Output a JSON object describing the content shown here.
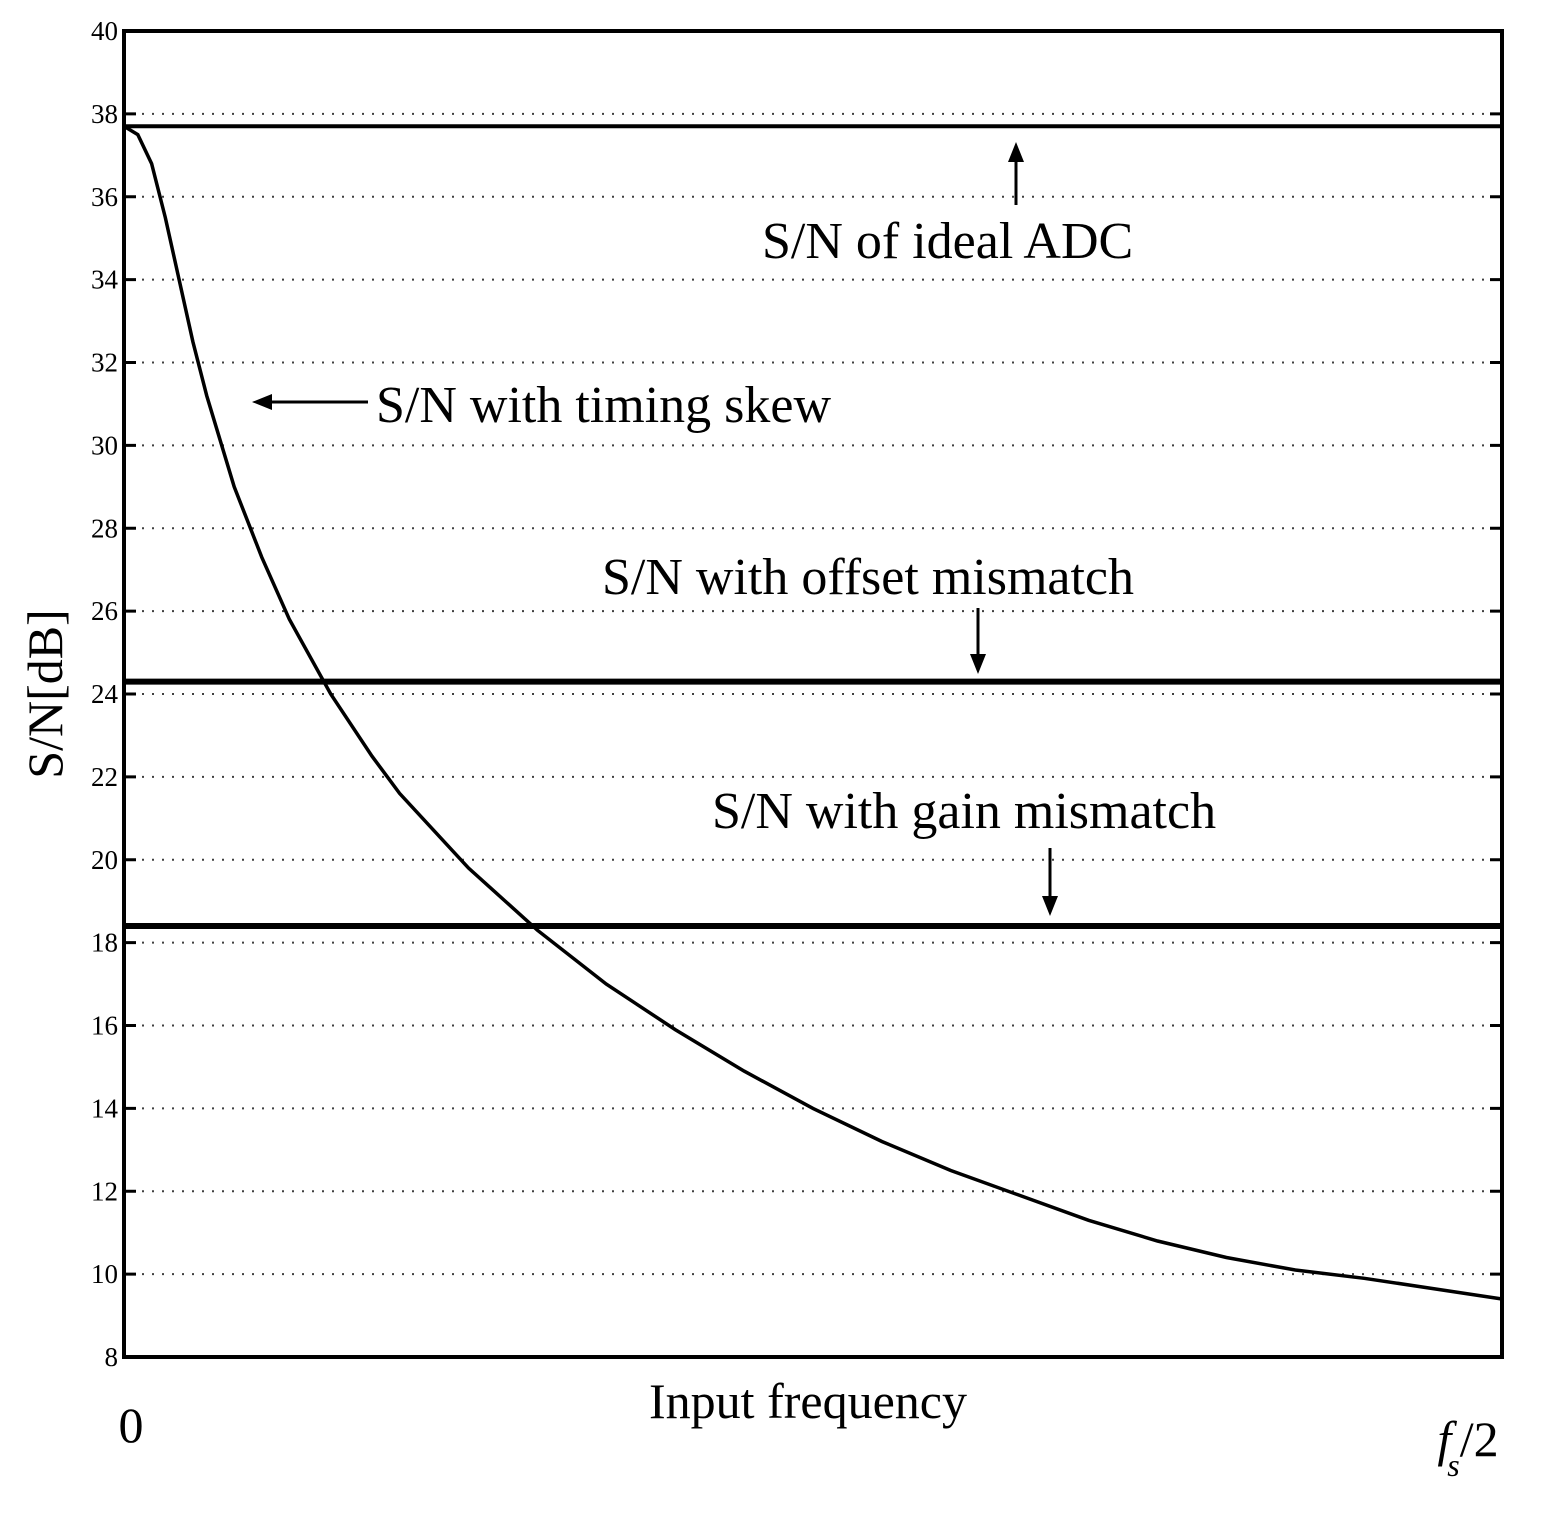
{
  "chart_data": {
    "type": "line",
    "title": "",
    "xlabel": "Input frequency",
    "ylabel": "S/N[dB]",
    "x_tick_labels": {
      "start": "0",
      "end_main": "f",
      "end_sub": "s",
      "end_tail": "/2"
    },
    "xlim": [
      0,
      1
    ],
    "ylim": [
      8,
      40
    ],
    "yticks": [
      8,
      10,
      12,
      14,
      16,
      18,
      20,
      22,
      24,
      26,
      28,
      30,
      32,
      34,
      36,
      38,
      40
    ],
    "grid": true,
    "series": [
      {
        "name": "S/N of ideal ADC",
        "kind": "horizontal",
        "y": 37.7
      },
      {
        "name": "S/N with offset mismatch",
        "kind": "horizontal",
        "y": 24.3
      },
      {
        "name": "S/N with gain mismatch",
        "kind": "horizontal",
        "y": 18.4
      },
      {
        "name": "S/N with timing skew",
        "kind": "curve",
        "x": [
          0,
          0.01,
          0.02,
          0.03,
          0.04,
          0.05,
          0.06,
          0.08,
          0.1,
          0.12,
          0.15,
          0.18,
          0.2,
          0.25,
          0.3,
          0.35,
          0.4,
          0.45,
          0.5,
          0.55,
          0.6,
          0.65,
          0.7,
          0.75,
          0.8,
          0.85,
          0.9,
          0.95,
          1.0
        ],
        "y": [
          37.7,
          37.5,
          36.8,
          35.5,
          34.0,
          32.5,
          31.2,
          29.0,
          27.3,
          25.8,
          24.0,
          22.5,
          21.6,
          19.8,
          18.3,
          17.0,
          15.9,
          14.9,
          14.0,
          13.2,
          12.5,
          11.9,
          11.3,
          10.8,
          10.4,
          10.1,
          9.9,
          9.65,
          9.4
        ]
      }
    ],
    "annotations": [
      {
        "text": "S/N of ideal ADC",
        "target": "ideal"
      },
      {
        "text": "S/N with timing skew",
        "target": "skew"
      },
      {
        "text": "S/N with offset mismatch",
        "target": "offset"
      },
      {
        "text": "S/N with gain mismatch",
        "target": "gain"
      }
    ]
  }
}
